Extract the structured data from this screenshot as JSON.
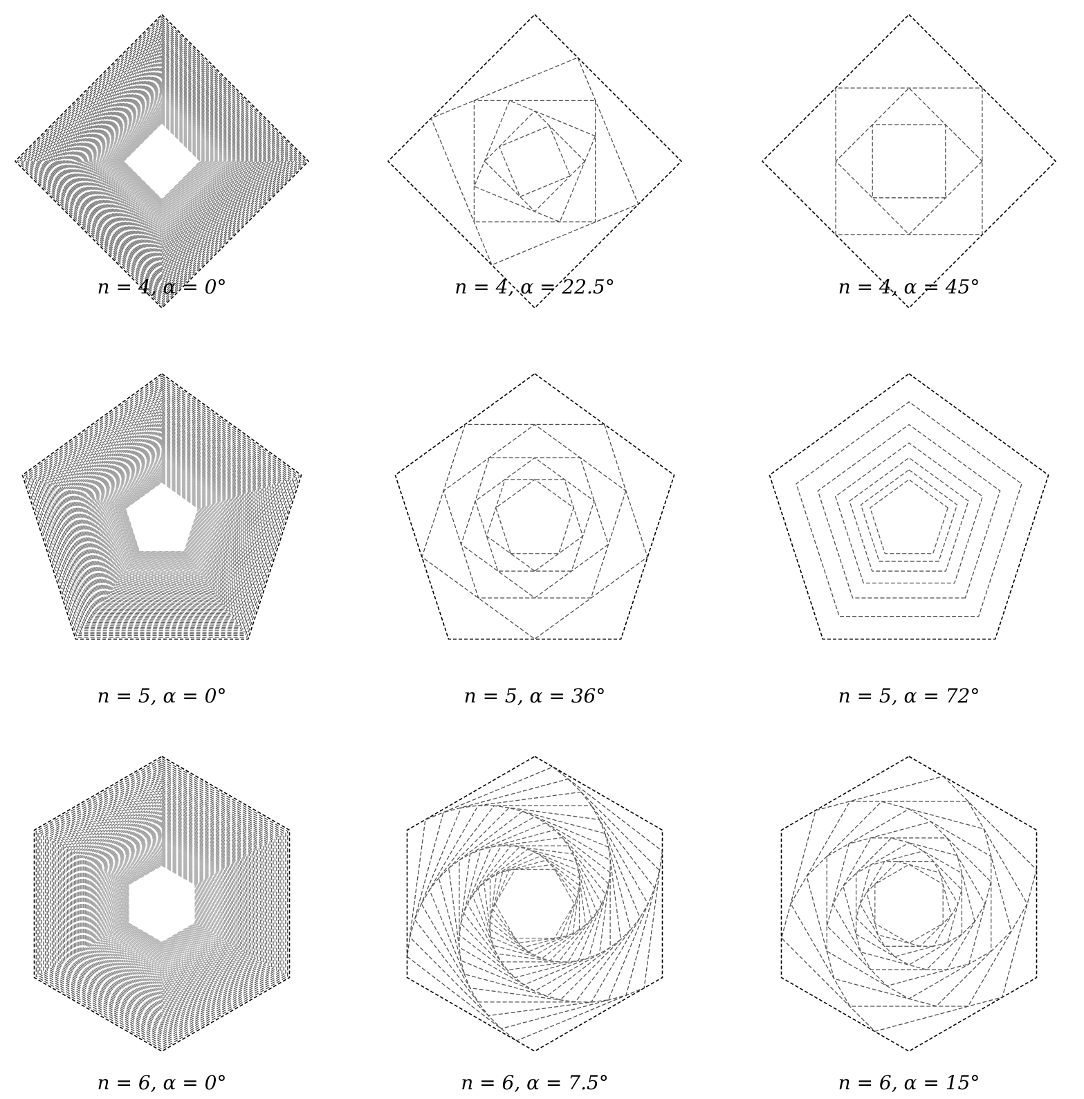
{
  "colors": {
    "outer_stroke": "#000000",
    "inner_stroke": "#4a4a4a",
    "innermost_stroke": "#b4b4b4",
    "background": "#ffffff"
  },
  "panels": [
    {
      "n": 4,
      "alpha": 0,
      "label": "n = 4, α = 0°"
    },
    {
      "n": 4,
      "alpha": 22.5,
      "label": "n = 4, α = 22.5°"
    },
    {
      "n": 4,
      "alpha": 45,
      "label": "n = 4, α = 45°"
    },
    {
      "n": 5,
      "alpha": 0,
      "label": "n = 5, α = 0°"
    },
    {
      "n": 5,
      "alpha": 36,
      "label": "n = 5, α = 36°"
    },
    {
      "n": 5,
      "alpha": 72,
      "label": "n = 5, α = 72°"
    },
    {
      "n": 6,
      "alpha": 0,
      "label": "n = 6, α = 0°"
    },
    {
      "n": 6,
      "alpha": 7.5,
      "label": "n = 6, α = 7.5°"
    },
    {
      "n": 6,
      "alpha": 15,
      "label": "n = 6, α = 15°"
    }
  ]
}
